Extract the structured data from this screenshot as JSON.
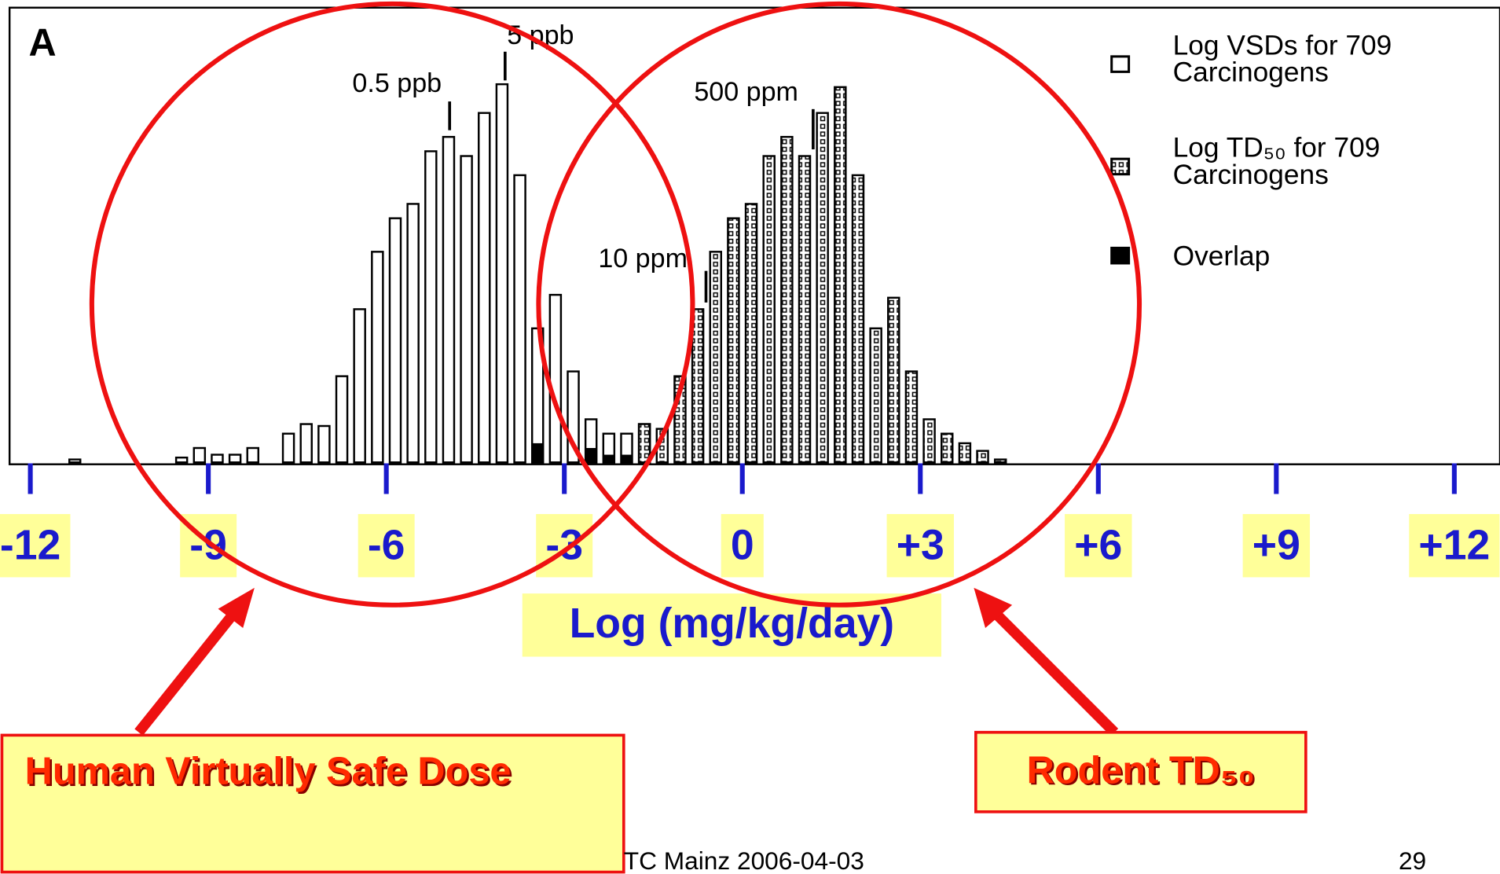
{
  "chart_data": {
    "type": "histogram",
    "panel_label": "A",
    "x_label": "Log (mg/kg/day)",
    "xlim": [
      -12.35,
      12.77
    ],
    "ylim": [
      0,
      475
    ],
    "xticks": [
      -12,
      -9,
      -6,
      -3,
      0,
      {
        "value": 3,
        "label": "+3"
      },
      {
        "value": 6,
        "label": "+6"
      },
      {
        "value": 9,
        "label": "+9"
      },
      {
        "value": 12,
        "label": "+12"
      }
    ],
    "series": [
      {
        "name": "Log VSDs for 709 Carcinogens",
        "color": "#ffffff",
        "bins": [
          -11.4,
          -11.1,
          -10.8,
          -10.5,
          -10.2,
          -9.9,
          -9.6,
          -9.3,
          -9.0,
          -8.7,
          -8.4,
          -8.1,
          -7.8,
          -7.5,
          -7.2,
          -6.9,
          -6.6,
          -6.3,
          -6.0,
          -5.7,
          -5.4,
          -5.1,
          -4.8,
          -4.5,
          -4.2,
          -3.9,
          -3.6,
          -3.3,
          -3.0,
          -2.7,
          -2.4,
          -2.1,
          -1.8,
          -1.5
        ],
        "values": [
          3,
          0,
          0,
          0,
          0,
          0,
          5,
          15,
          8,
          8,
          15,
          0,
          30,
          40,
          38,
          90,
          160,
          220,
          255,
          270,
          325,
          340,
          320,
          365,
          395,
          300,
          140,
          175,
          95,
          45,
          30,
          30,
          40
        ]
      },
      {
        "name": "Log TD₅₀ for 709 Carcinogens",
        "color": "hatched",
        "bins": [
          -1.8,
          -1.5,
          -1.2,
          -0.9,
          -0.6,
          -0.3,
          0.0,
          0.3,
          0.6,
          0.9,
          1.2,
          1.5,
          1.8,
          2.1,
          2.4,
          2.7,
          3.0,
          3.3,
          3.6,
          3.9,
          4.2,
          4.5
        ],
        "values": [
          40,
          35,
          90,
          160,
          220,
          255,
          270,
          320,
          340,
          320,
          365,
          392,
          300,
          140,
          172,
          95,
          45,
          30,
          20,
          12,
          3
        ]
      },
      {
        "name": "Overlap",
        "color": "#000000",
        "bins": [
          -3.6,
          -3.3,
          -3.0,
          -2.7,
          -2.4,
          -2.1,
          -1.8
        ],
        "values": [
          20,
          0,
          0,
          15,
          8,
          8
        ]
      }
    ],
    "annotations": [
      "5 ppb",
      "0.5 ppb",
      "500 ppm",
      "10 ppm"
    ]
  },
  "callouts": [
    "Human Virtually Safe Dose",
    "Rodent TD₅₀"
  ],
  "footer": {
    "text": "TC Mainz 2006-04-03",
    "page": "29"
  }
}
